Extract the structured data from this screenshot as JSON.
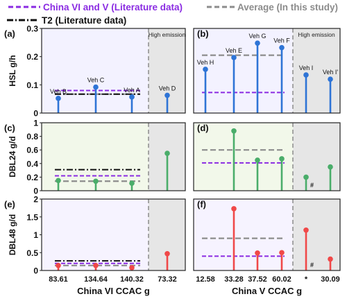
{
  "legend": [
    {
      "label": "China VI and V (Literature data)",
      "color": "#8a2be2",
      "style": "dashed"
    },
    {
      "label": "Average (In this study)",
      "color": "#8c8c8c",
      "style": "dashed"
    },
    {
      "label": "T2 (Literature data)",
      "color": "#111111",
      "style": "dashdot"
    }
  ],
  "high_emission_label": "High emission",
  "colors": {
    "hsl": "#2e74d6",
    "dbl24": "#4aad6a",
    "dbl48": "#f04848",
    "hsl_bg": "#f3f2ff",
    "dbl24_bg": "#f2f8ea",
    "dbl48_bg": "#f6f3ff",
    "high_bg": "#e6e6e6",
    "china": "#8a2be2",
    "average": "#8c8c8c",
    "t2": "#111111"
  },
  "chart_data": [
    {
      "type": "lollipop",
      "panel": "(a)",
      "ylabel": "HSL g/h",
      "ylim": [
        0,
        0.3
      ],
      "yticks": [
        "0",
        "0.1",
        "0.2",
        "0.3"
      ],
      "categories": [
        "83.61",
        "134.64",
        "140.32",
        "73.32"
      ],
      "high_emission_index": 3,
      "values": [
        0.052,
        0.092,
        0.057,
        0.063
      ],
      "point_labels": [
        "Veh B",
        "Veh C",
        "Veh A",
        "Veh D"
      ],
      "reference_lines": {
        "china": 0.08,
        "average": 0.067,
        "t2": 0.067
      },
      "marks": []
    },
    {
      "type": "lollipop",
      "panel": "(b)",
      "ylabel": "",
      "ylim": [
        0,
        0.3
      ],
      "yticks": [],
      "categories": [
        "12.58",
        "33.28",
        "37.52",
        "60.02",
        "*",
        "30.09"
      ],
      "high_emission_index": 4,
      "values": [
        0.155,
        0.197,
        0.248,
        0.232,
        0.135,
        0.12
      ],
      "point_labels": [
        "Veh H",
        "Veh E",
        "Veh G",
        "Veh F",
        "Veh I",
        "Veh I'"
      ],
      "reference_lines": {
        "china": 0.073,
        "average": 0.205,
        "t2": null
      },
      "marks": []
    },
    {
      "type": "lollipop",
      "panel": "(c)",
      "ylabel": "DBL24 g/d",
      "ylim": [
        0,
        1.0
      ],
      "yticks": [
        "0",
        "0.2",
        "0.4",
        "0.6",
        "0.8",
        "1"
      ],
      "categories": [
        "83.61",
        "134.64",
        "140.32",
        "73.32"
      ],
      "high_emission_index": 3,
      "values": [
        0.15,
        0.14,
        0.11,
        0.55
      ],
      "point_labels": [],
      "reference_lines": {
        "china": 0.22,
        "average": 0.14,
        "t2": 0.31
      },
      "marks": []
    },
    {
      "type": "lollipop",
      "panel": "(d)",
      "ylabel": "",
      "ylim": [
        0,
        1.0
      ],
      "yticks": [],
      "categories": [
        "12.58",
        "33.28",
        "37.52",
        "60.02",
        "*",
        "30.09"
      ],
      "high_emission_index": 4,
      "values": [
        null,
        0.88,
        0.45,
        0.47,
        0.2,
        0.35
      ],
      "point_labels": [],
      "reference_lines": {
        "china": 0.41,
        "average": 0.6,
        "t2": null
      },
      "marks": [
        "#"
      ]
    },
    {
      "type": "lollipop",
      "panel": "(e)",
      "ylabel": "DBL48 g/d",
      "ylim": [
        0,
        2.0
      ],
      "yticks": [
        "0",
        "0.5",
        "1",
        "1.5",
        "2"
      ],
      "categories": [
        "83.61",
        "134.64",
        "140.32",
        "73.32"
      ],
      "high_emission_index": 3,
      "values": [
        0.14,
        0.14,
        0.08,
        0.47
      ],
      "point_labels": [],
      "reference_lines": {
        "china": 0.2,
        "average": 0.14,
        "t2": 0.27
      },
      "marks": []
    },
    {
      "type": "lollipop",
      "panel": "(f)",
      "ylabel": "",
      "ylim": [
        0,
        2.0
      ],
      "yticks": [],
      "categories": [
        "12.58",
        "33.28",
        "37.52",
        "60.02",
        "*",
        "30.09"
      ],
      "high_emission_index": 4,
      "values": [
        null,
        1.73,
        0.49,
        0.5,
        1.13,
        0.32
      ],
      "point_labels": [],
      "reference_lines": {
        "china": 0.4,
        "average": 0.9,
        "t2": null
      },
      "marks": [
        "#"
      ]
    }
  ],
  "xlabels": [
    "China VI CCAC g",
    "China V CCAC g"
  ]
}
